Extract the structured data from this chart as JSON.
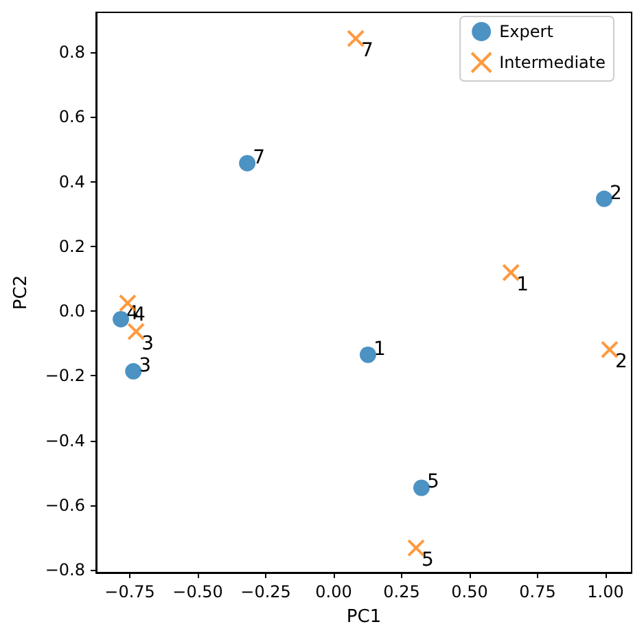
{
  "chart_data": {
    "type": "scatter",
    "xlabel": "PC1",
    "ylabel": "PC2",
    "xlim": [
      -0.874,
      1.096
    ],
    "ylim": [
      -0.808,
      0.923
    ],
    "xticks": [
      {
        "value": -0.75,
        "label": "−0.75"
      },
      {
        "value": -0.5,
        "label": "−0.50"
      },
      {
        "value": -0.25,
        "label": "−0.25"
      },
      {
        "value": 0,
        "label": "0.00"
      },
      {
        "value": 0.25,
        "label": "0.25"
      },
      {
        "value": 0.5,
        "label": "0.50"
      },
      {
        "value": 0.75,
        "label": "0.75"
      },
      {
        "value": 1,
        "label": "1.00"
      }
    ],
    "yticks": [
      {
        "value": -0.8,
        "label": "−0.8"
      },
      {
        "value": -0.6,
        "label": "−0.6"
      },
      {
        "value": -0.4,
        "label": "−0.4"
      },
      {
        "value": -0.2,
        "label": "−0.2"
      },
      {
        "value": 0,
        "label": "0.0"
      },
      {
        "value": 0.2,
        "label": "0.2"
      },
      {
        "value": 0.4,
        "label": "0.4"
      },
      {
        "value": 0.6,
        "label": "0.6"
      },
      {
        "value": 0.8,
        "label": "0.8"
      }
    ],
    "grid": false,
    "legend": "top right",
    "annotations": [
      {
        "text": "1",
        "x": 0.126,
        "y": -0.135
      },
      {
        "text": "2",
        "x": 0.995,
        "y": 0.347
      },
      {
        "text": "3",
        "x": -0.737,
        "y": -0.186
      },
      {
        "text": "4",
        "x": -0.783,
        "y": -0.025
      },
      {
        "text": "5",
        "x": 0.323,
        "y": -0.546
      },
      {
        "text": "7",
        "x": -0.318,
        "y": 0.457
      },
      {
        "text": "1",
        "x": 0.652,
        "y": 0.119
      },
      {
        "text": "2",
        "x": 1.015,
        "y": -0.119
      },
      {
        "text": "3",
        "x": -0.727,
        "y": -0.063
      },
      {
        "text": "4",
        "x": -0.758,
        "y": 0.025
      },
      {
        "text": "5",
        "x": 0.303,
        "y": -0.732
      },
      {
        "text": "7",
        "x": 0.081,
        "y": 0.842
      }
    ],
    "series": [
      {
        "name": "Expert",
        "color": "#1f77b4",
        "marker": "circle",
        "x": [
          0.126,
          0.995,
          -0.737,
          -0.783,
          0.323,
          -0.318
        ],
        "values": [
          -0.135,
          0.347,
          -0.186,
          -0.025,
          -0.546,
          0.457
        ]
      },
      {
        "name": "Intermediate",
        "color": "#ff7f0e",
        "marker": "cross",
        "x": [
          0.652,
          1.015,
          -0.727,
          -0.758,
          0.303,
          0.081
        ],
        "values": [
          0.119,
          -0.119,
          -0.063,
          0.025,
          -0.732,
          0.842
        ]
      }
    ]
  }
}
